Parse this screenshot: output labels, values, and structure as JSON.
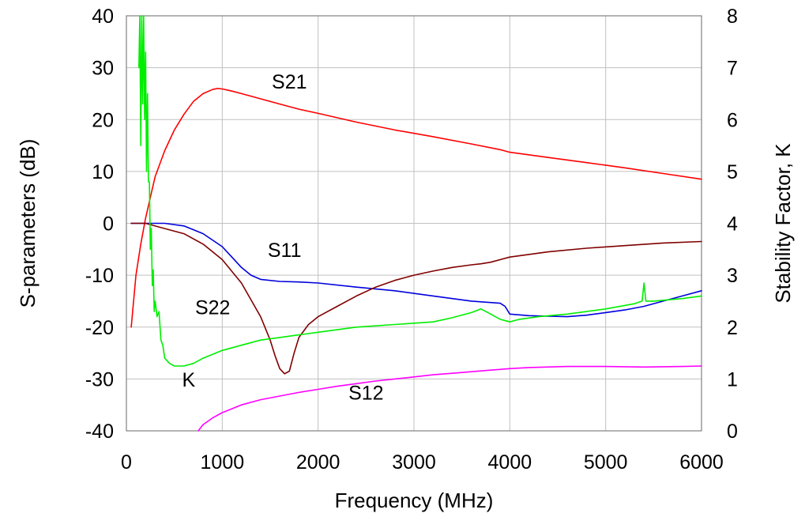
{
  "chart_data": {
    "type": "line",
    "xlabel": "Frequency (MHz)",
    "ylabel": "S-parameters (dB)",
    "y2label": "Stability Factor, K",
    "xlim": [
      0,
      6000
    ],
    "ylim": [
      -40,
      40
    ],
    "y2lim": [
      0,
      8
    ],
    "grid": true,
    "x_ticks": [
      0,
      1000,
      2000,
      3000,
      4000,
      5000,
      6000
    ],
    "y_ticks": [
      -40,
      -30,
      -20,
      -10,
      0,
      10,
      20,
      30,
      40
    ],
    "y2_ticks": [
      0,
      1,
      2,
      3,
      4,
      5,
      6,
      7,
      8
    ],
    "series": [
      {
        "name": "S21",
        "axis": "left",
        "color": "#ff0000",
        "x": [
          50,
          100,
          150,
          200,
          250,
          300,
          400,
          500,
          600,
          700,
          800,
          900,
          950,
          1000,
          1100,
          1200,
          1400,
          1600,
          1800,
          2000,
          2400,
          2800,
          3200,
          3600,
          3900,
          4000,
          4400,
          4800,
          5200,
          5600,
          6000
        ],
        "y": [
          -20,
          -10,
          -4,
          1,
          5,
          9,
          14,
          18,
          21,
          23.5,
          25,
          25.8,
          26,
          25.9,
          25.5,
          25,
          24,
          23,
          22,
          21.2,
          19.5,
          18,
          16.7,
          15.3,
          14.2,
          13.7,
          12.7,
          11.7,
          10.7,
          9.6,
          8.5
        ]
      },
      {
        "name": "S11",
        "axis": "left",
        "color": "#0000dd",
        "x": [
          50,
          200,
          400,
          600,
          800,
          1000,
          1100,
          1200,
          1300,
          1400,
          1600,
          1800,
          2000,
          2400,
          2800,
          3200,
          3600,
          3900,
          3950,
          4000,
          4200,
          4400,
          4600,
          4800,
          5000,
          5200,
          5400,
          5600,
          5800,
          6000
        ],
        "y": [
          0,
          0,
          0,
          -0.5,
          -2,
          -4.5,
          -6.5,
          -8.5,
          -10,
          -10.8,
          -11.2,
          -11.3,
          -11.5,
          -12.3,
          -13,
          -14,
          -15,
          -15.4,
          -16,
          -17.5,
          -17.8,
          -17.9,
          -18,
          -17.7,
          -17.2,
          -16.7,
          -16,
          -15,
          -14,
          -13
        ]
      },
      {
        "name": "S22",
        "axis": "left",
        "color": "#800000",
        "x": [
          50,
          200,
          400,
          600,
          800,
          1000,
          1200,
          1400,
          1500,
          1550,
          1600,
          1650,
          1700,
          1750,
          1800,
          1900,
          2000,
          2200,
          2400,
          2600,
          2800,
          3000,
          3200,
          3400,
          3600,
          3700,
          3800,
          4000,
          4400,
          4800,
          5200,
          5600,
          6000
        ],
        "y": [
          0,
          0,
          -1,
          -2,
          -4,
          -7,
          -11.5,
          -18,
          -22.5,
          -25.5,
          -28,
          -29,
          -28.5,
          -25,
          -22,
          -19.5,
          -18,
          -16,
          -14,
          -12.3,
          -11,
          -10,
          -9.2,
          -8.5,
          -8,
          -7.8,
          -7.5,
          -6.5,
          -5.5,
          -4.8,
          -4.3,
          -3.8,
          -3.5
        ]
      },
      {
        "name": "S12",
        "axis": "left",
        "color": "#ff00ff",
        "x": [
          750,
          800,
          900,
          1000,
          1200,
          1400,
          1600,
          1800,
          2000,
          2200,
          2400,
          2600,
          2800,
          3000,
          3200,
          3400,
          3600,
          3800,
          4000,
          4200,
          4600,
          5000,
          5400,
          5800,
          6000
        ],
        "y": [
          -40,
          -38.8,
          -37.5,
          -36.5,
          -35,
          -34,
          -33.3,
          -32.6,
          -32,
          -31.4,
          -30.9,
          -30.4,
          -30,
          -29.6,
          -29.2,
          -28.9,
          -28.6,
          -28.3,
          -28,
          -27.8,
          -27.6,
          -27.6,
          -27.7,
          -27.6,
          -27.5
        ]
      },
      {
        "name": "K",
        "axis": "right",
        "color": "#00ee00",
        "x": [
          130,
          140,
          150,
          160,
          170,
          180,
          190,
          200,
          210,
          220,
          230,
          240,
          250,
          260,
          270,
          280,
          290,
          300,
          320,
          340,
          360,
          380,
          400,
          450,
          500,
          550,
          600,
          700,
          800,
          1000,
          1200,
          1400,
          1600,
          1800,
          2000,
          2400,
          2800,
          3200,
          3400,
          3600,
          3700,
          3800,
          3900,
          4000,
          4100,
          4300,
          4600,
          5000,
          5300,
          5380,
          5400,
          5420,
          5500,
          5800,
          6000
        ],
        "y": [
          7,
          8,
          5.5,
          8,
          6.3,
          8,
          6,
          7.3,
          5,
          6.5,
          4.8,
          4.8,
          3.5,
          3.9,
          2.8,
          3.1,
          2.3,
          2.5,
          2.2,
          2.3,
          1.75,
          1.65,
          1.4,
          1.3,
          1.25,
          1.25,
          1.25,
          1.3,
          1.4,
          1.55,
          1.65,
          1.75,
          1.8,
          1.85,
          1.9,
          2.0,
          2.05,
          2.1,
          2.18,
          2.28,
          2.35,
          2.25,
          2.15,
          2.1,
          2.15,
          2.2,
          2.25,
          2.35,
          2.45,
          2.5,
          2.85,
          2.5,
          2.5,
          2.55,
          2.6
        ]
      }
    ],
    "annotations": [
      {
        "text": "S21",
        "x": 1700,
        "y": 26
      },
      {
        "text": "S11",
        "x": 1650,
        "y": -6.5
      },
      {
        "text": "S22",
        "x": 900,
        "y": -17.5
      },
      {
        "text": "K",
        "x": 650,
        "y": -31.5
      },
      {
        "text": "S12",
        "x": 2500,
        "y": -34
      }
    ]
  }
}
